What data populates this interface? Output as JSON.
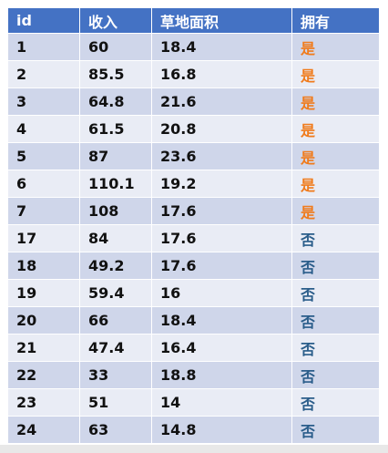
{
  "table": {
    "headers": [
      "id",
      "收入",
      "草地面积",
      "拥有"
    ],
    "rows": [
      {
        "id": "1",
        "income": "60",
        "area": "18.4",
        "own": "是"
      },
      {
        "id": "2",
        "income": "85.5",
        "area": "16.8",
        "own": "是"
      },
      {
        "id": "3",
        "income": "64.8",
        "area": "21.6",
        "own": "是"
      },
      {
        "id": "4",
        "income": "61.5",
        "area": "20.8",
        "own": "是"
      },
      {
        "id": "5",
        "income": "87",
        "area": "23.6",
        "own": "是"
      },
      {
        "id": "6",
        "income": "110.1",
        "area": "19.2",
        "own": "是"
      },
      {
        "id": "7",
        "income": "108",
        "area": "17.6",
        "own": "是"
      },
      {
        "id": "17",
        "income": "84",
        "area": "17.6",
        "own": "否"
      },
      {
        "id": "18",
        "income": "49.2",
        "area": "17.6",
        "own": "否"
      },
      {
        "id": "19",
        "income": "59.4",
        "area": "16",
        "own": "否"
      },
      {
        "id": "20",
        "income": "66",
        "area": "18.4",
        "own": "否"
      },
      {
        "id": "21",
        "income": "47.4",
        "area": "16.4",
        "own": "否"
      },
      {
        "id": "22",
        "income": "33",
        "area": "18.8",
        "own": "否"
      },
      {
        "id": "23",
        "income": "51",
        "area": "14",
        "own": "否"
      },
      {
        "id": "24",
        "income": "63",
        "area": "14.8",
        "own": "否"
      }
    ]
  },
  "colors": {
    "header_bg": "#4472c4",
    "row_odd_bg": "#cfd6ea",
    "row_even_bg": "#e9ecf5",
    "yes_text": "#f07b1c",
    "no_text": "#2a5d8a"
  }
}
